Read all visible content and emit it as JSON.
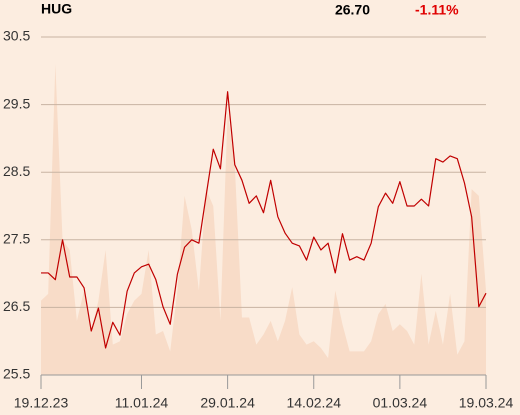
{
  "header": {
    "ticker": "HUG",
    "last": "26.70",
    "change": "-1.11%"
  },
  "chart_data": {
    "type": "line",
    "categories": [
      "19.12.23",
      null,
      null,
      null,
      null,
      null,
      null,
      null,
      null,
      null,
      null,
      null,
      null,
      null,
      "11.01.24",
      null,
      null,
      null,
      null,
      null,
      null,
      null,
      null,
      null,
      null,
      null,
      "29.01.24",
      null,
      null,
      null,
      null,
      null,
      null,
      null,
      null,
      null,
      null,
      null,
      "14.02.24",
      null,
      null,
      null,
      null,
      null,
      null,
      null,
      null,
      null,
      null,
      null,
      "01.03.24",
      null,
      null,
      null,
      null,
      null,
      null,
      null,
      null,
      null,
      null,
      null,
      "19.03.24"
    ],
    "series": [
      {
        "color": "#f8dcc8",
        "axis": "y2",
        "values": [
          22,
          24,
          92,
          40,
          37,
          16,
          25,
          13,
          22,
          37,
          9,
          10,
          18,
          22,
          24,
          37,
          12,
          13,
          7,
          25,
          53,
          43,
          25,
          55,
          50,
          16,
          78,
          62,
          17,
          17,
          9,
          12,
          16,
          10,
          16,
          26,
          12,
          9,
          10,
          8,
          5,
          25,
          15,
          7,
          7,
          7,
          10,
          18,
          21,
          13,
          15,
          13,
          9,
          30,
          9,
          19,
          9,
          24,
          6,
          10,
          55,
          53,
          25
        ]
      },
      {
        "color": "#c00000",
        "values": [
          27.01,
          27.01,
          26.91,
          27.5,
          26.95,
          26.95,
          26.79,
          26.15,
          26.49,
          25.9,
          26.28,
          26.09,
          26.74,
          27.01,
          27.1,
          27.14,
          26.91,
          26.51,
          26.25,
          26.99,
          27.39,
          27.5,
          27.45,
          28.15,
          28.84,
          28.55,
          29.69,
          28.61,
          28.38,
          28.04,
          28.15,
          27.9,
          28.38,
          27.84,
          27.6,
          27.45,
          27.41,
          27.2,
          27.54,
          27.35,
          27.45,
          27.01,
          27.59,
          27.2,
          27.25,
          27.2,
          27.45,
          27.99,
          28.19,
          28.04,
          28.36,
          28.0,
          28.0,
          28.1,
          28.0,
          28.7,
          28.65,
          28.74,
          28.7,
          28.34,
          27.84,
          26.51,
          26.71
        ]
      }
    ],
    "ylim": [
      25.5,
      30.5
    ],
    "yticks": [
      25.5,
      26.5,
      27.5,
      28.5,
      29.5,
      30.5
    ],
    "y2lim": [
      0,
      100
    ],
    "grid": true
  }
}
